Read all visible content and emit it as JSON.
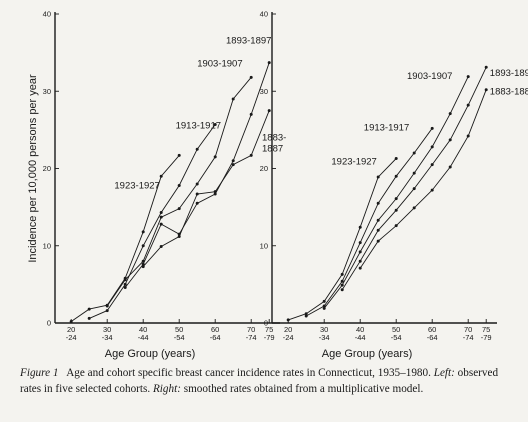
{
  "caption": {
    "label": "Figure 1",
    "title": "Age and cohort specific breast cancer incidence rates in Connecticut, 1935–1980.",
    "left_label": "Left:",
    "left_text": "observed rates in five selected cohorts.",
    "right_label": "Right:",
    "right_text": "smoothed rates obtained from a multiplicative model."
  },
  "chart_data": [
    {
      "type": "line",
      "panel": "left",
      "ylabel": "Incidence per 10,000 persons per year",
      "xlabel": "Age Group (years)",
      "ylim": [
        0,
        40
      ],
      "yticks": [
        0,
        10,
        20,
        30,
        40
      ],
      "ytick_labels": [
        "0",
        "10",
        "20",
        "30",
        "40"
      ],
      "xlim": [
        20,
        80
      ],
      "xticks": [
        {
          "x": 22,
          "top": "20",
          "bottom": "-24"
        },
        {
          "x": 32,
          "top": "30",
          "bottom": "-34"
        },
        {
          "x": 42,
          "top": "40",
          "bottom": "-44"
        },
        {
          "x": 52,
          "top": "50",
          "bottom": "-54"
        },
        {
          "x": 62,
          "top": "60",
          "bottom": "-64"
        },
        {
          "x": 72,
          "top": "70",
          "bottom": "-74"
        },
        {
          "x": 77,
          "top": "75",
          "bottom": "-79"
        }
      ],
      "grid": false,
      "series": [
        {
          "name": "1923-1927",
          "x": [
            22,
            27,
            32,
            37,
            42,
            47,
            52
          ],
          "y": [
            0.2,
            1.8,
            2.3,
            5.8,
            11.8,
            19.0,
            21.7
          ]
        },
        {
          "name": "1913-1917",
          "x": [
            27,
            32,
            37,
            42,
            47,
            52,
            57,
            62
          ],
          "y": [
            0.6,
            1.6,
            5.0,
            10.0,
            14.3,
            17.8,
            22.5,
            25.7
          ]
        },
        {
          "name": "1903-1907",
          "x": [
            32,
            37,
            42,
            47,
            52,
            57,
            62,
            67,
            72
          ],
          "y": [
            2.2,
            5.6,
            8.0,
            13.7,
            14.8,
            18.0,
            21.5,
            29.0,
            31.8
          ]
        },
        {
          "name": "1893-1897",
          "x": [
            37,
            42,
            47,
            52,
            57,
            62,
            67,
            72,
            77
          ],
          "y": [
            4.6,
            7.6,
            12.8,
            11.5,
            15.5,
            16.7,
            21.0,
            27.0,
            33.7
          ]
        },
        {
          "name": "1883-1887",
          "x": [
            42,
            47,
            52,
            57,
            62,
            67,
            72,
            77
          ],
          "y": [
            7.3,
            9.9,
            11.2,
            16.7,
            17.0,
            20.5,
            21.7,
            27.5
          ]
        }
      ],
      "labels": [
        {
          "text": "1923-1927",
          "x": 34,
          "y": 17.4
        },
        {
          "text": "1913-1917",
          "x": 51,
          "y": 25.2
        },
        {
          "text": "1903-1907",
          "x": 57,
          "y": 33.2
        },
        {
          "text": "1893-1897",
          "x": 65,
          "y": 36.2
        },
        {
          "text": "1883-",
          "x": 75,
          "y": 23.6
        },
        {
          "text": "1887",
          "x": 75,
          "y": 22.2
        }
      ]
    },
    {
      "type": "line",
      "panel": "right",
      "ylabel": "",
      "xlabel": "Age Group (years)",
      "ylim": [
        0,
        40
      ],
      "yticks": [
        0,
        10,
        20,
        30,
        40
      ],
      "ytick_labels": [
        "0",
        "10",
        "20",
        "30",
        "40"
      ],
      "xlim": [
        20,
        80
      ],
      "xticks": [
        {
          "x": 22,
          "top": "20",
          "bottom": "-24"
        },
        {
          "x": 32,
          "top": "30",
          "bottom": "-34"
        },
        {
          "x": 42,
          "top": "40",
          "bottom": "-44"
        },
        {
          "x": 52,
          "top": "50",
          "bottom": "-54"
        },
        {
          "x": 62,
          "top": "60",
          "bottom": "-64"
        },
        {
          "x": 72,
          "top": "70",
          "bottom": "-74"
        },
        {
          "x": 77,
          "top": "75",
          "bottom": "-79"
        }
      ],
      "grid": false,
      "series": [
        {
          "name": "1923-1927",
          "x": [
            22,
            27,
            32,
            37,
            42,
            47,
            52
          ],
          "y": [
            0.4,
            1.2,
            2.8,
            6.3,
            12.4,
            18.9,
            21.3
          ]
        },
        {
          "name": "1913-1917",
          "x": [
            27,
            32,
            37,
            42,
            47,
            52,
            57,
            62
          ],
          "y": [
            0.9,
            2.2,
            5.4,
            10.4,
            15.5,
            19.0,
            22.0,
            25.2
          ]
        },
        {
          "name": "1903-1907",
          "x": [
            32,
            37,
            42,
            47,
            52,
            57,
            62,
            67,
            72
          ],
          "y": [
            1.9,
            4.9,
            9.2,
            13.3,
            16.1,
            19.4,
            22.8,
            27.1,
            31.9
          ]
        },
        {
          "name": "1893-1897",
          "x": [
            37,
            42,
            47,
            52,
            57,
            62,
            67,
            72,
            77
          ],
          "y": [
            4.3,
            8.0,
            12.0,
            14.6,
            17.4,
            20.5,
            23.7,
            28.2,
            33.1
          ]
        },
        {
          "name": "1883-1887",
          "x": [
            42,
            47,
            52,
            57,
            62,
            67,
            72,
            77
          ],
          "y": [
            7.1,
            10.6,
            12.6,
            14.9,
            17.2,
            20.2,
            24.2,
            30.2
          ]
        }
      ],
      "labels": [
        {
          "text": "1923-1927",
          "x": 34,
          "y": 20.5
        },
        {
          "text": "1913-1917",
          "x": 43,
          "y": 24.9
        },
        {
          "text": "1903-1907",
          "x": 55,
          "y": 31.6
        },
        {
          "text": "1893-1897",
          "x": 78,
          "y": 32.0
        },
        {
          "text": "1883-1887",
          "x": 78,
          "y": 29.6
        }
      ]
    }
  ]
}
